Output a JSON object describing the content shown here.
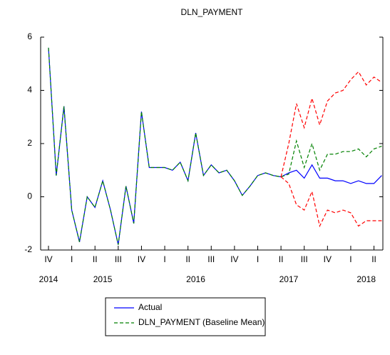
{
  "chart_data": {
    "type": "line",
    "title": "DLN_PAYMENT",
    "categories": [
      "IV",
      null,
      null,
      "I",
      null,
      null,
      "II",
      null,
      null,
      "III",
      null,
      null,
      "IV",
      null,
      null,
      "I",
      null,
      null,
      "II",
      null,
      null,
      "III",
      null,
      null,
      "IV",
      null,
      null,
      "I",
      null,
      null,
      "II",
      null,
      null,
      "III",
      null,
      null,
      "IV",
      null,
      null,
      "I",
      null,
      null,
      "II",
      null
    ],
    "years": [
      "2014",
      null,
      null,
      null,
      null,
      null,
      null,
      "2015",
      null,
      null,
      null,
      null,
      null,
      null,
      null,
      null,
      null,
      null,
      null,
      "2016",
      null,
      null,
      null,
      null,
      null,
      null,
      null,
      null,
      null,
      null,
      null,
      "2017",
      null,
      null,
      null,
      null,
      null,
      null,
      null,
      null,
      null,
      "2018",
      null,
      null
    ],
    "series": [
      {
        "name": "Actual",
        "color": "#0000ff",
        "dash": false,
        "values": [
          5.6,
          0.8,
          3.4,
          -0.5,
          -1.7,
          0.0,
          -0.4,
          0.6,
          -0.5,
          -1.8,
          0.4,
          -1.0,
          3.2,
          1.1,
          1.1,
          1.1,
          1.0,
          1.3,
          0.6,
          2.4,
          0.8,
          1.2,
          0.9,
          1.0,
          0.6,
          0.05,
          0.4,
          0.8,
          0.9,
          0.8,
          0.75,
          0.9,
          1.0,
          0.7,
          1.2,
          0.7,
          0.7,
          0.6,
          0.6,
          0.5,
          0.6,
          0.5,
          0.5,
          0.8
        ]
      },
      {
        "name": "DLN_PAYMENT (Baseline Mean)",
        "color": "#008000",
        "dash": true,
        "values": [
          5.6,
          0.8,
          3.4,
          -0.5,
          -1.7,
          0.0,
          -0.4,
          0.6,
          -0.5,
          -1.8,
          0.4,
          -1.0,
          3.2,
          1.1,
          1.1,
          1.1,
          1.0,
          1.3,
          0.6,
          2.4,
          0.8,
          1.2,
          0.9,
          1.0,
          0.6,
          0.05,
          0.4,
          0.8,
          0.9,
          0.8,
          0.75,
          0.85,
          2.1,
          1.1,
          2.0,
          1.0,
          1.6,
          1.6,
          1.7,
          1.7,
          1.8,
          1.5,
          1.8,
          1.9
        ]
      },
      {
        "color": "#ff0000",
        "dash": true,
        "values": [
          null,
          null,
          null,
          null,
          null,
          null,
          null,
          null,
          null,
          null,
          null,
          null,
          null,
          null,
          null,
          null,
          null,
          null,
          null,
          null,
          null,
          null,
          null,
          null,
          null,
          null,
          null,
          null,
          null,
          null,
          0.75,
          2.0,
          3.5,
          2.6,
          3.7,
          2.7,
          3.6,
          3.9,
          4.0,
          4.4,
          4.7,
          4.2,
          4.5,
          4.3
        ]
      },
      {
        "color": "#ff0000",
        "dash": true,
        "values": [
          null,
          null,
          null,
          null,
          null,
          null,
          null,
          null,
          null,
          null,
          null,
          null,
          null,
          null,
          null,
          null,
          null,
          null,
          null,
          null,
          null,
          null,
          null,
          null,
          null,
          null,
          null,
          null,
          null,
          null,
          0.75,
          0.5,
          -0.3,
          -0.5,
          0.2,
          -1.1,
          -0.5,
          -0.6,
          -0.5,
          -0.6,
          -1.1,
          -0.9,
          -0.9,
          -0.9
        ]
      }
    ],
    "ylim": [
      -2,
      6
    ],
    "yticks": [
      -2,
      0,
      2,
      4,
      6
    ]
  }
}
